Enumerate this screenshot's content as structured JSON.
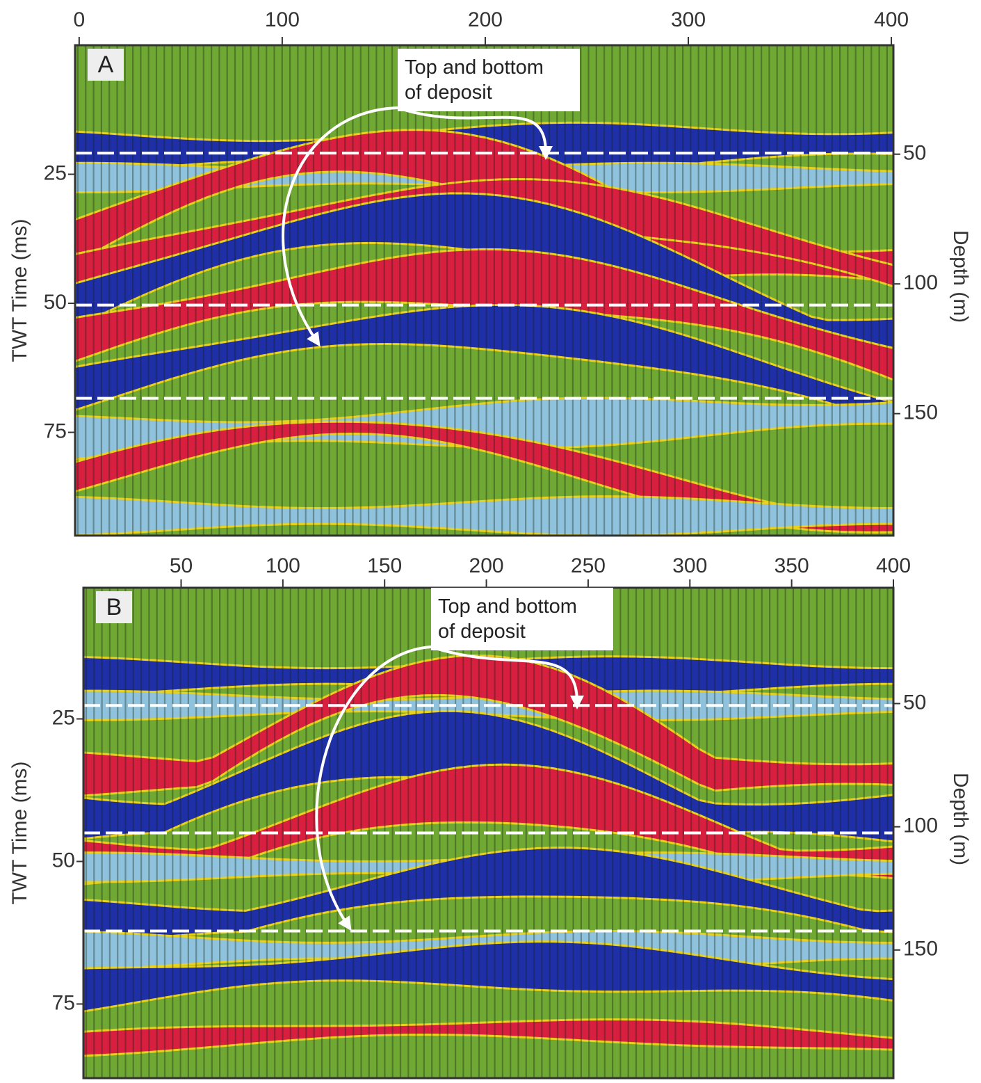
{
  "chart_data": [
    {
      "type": "seismic",
      "panel_label": "A",
      "annotation": [
        "Top and bottom",
        "of deposit"
      ],
      "ylabel": "TWT Time (ms)",
      "y2label": "Depth (m)",
      "xlim": [
        -2,
        401
      ],
      "xticks": [
        0,
        100,
        200,
        300,
        400
      ],
      "ylim": [
        0,
        95
      ],
      "yticks": [
        25,
        50,
        75
      ],
      "y2lim": [
        8,
        197
      ],
      "y2ticks": [
        50,
        100,
        150
      ]
    },
    {
      "type": "seismic",
      "panel_label": "B",
      "annotation": [
        "Top and bottom",
        "of deposit"
      ],
      "ylabel": "TWT Time (ms)",
      "y2label": "Depth (m)",
      "xlim": [
        2,
        400
      ],
      "xticks": [
        50,
        100,
        150,
        200,
        250,
        300,
        350,
        400
      ],
      "ylim": [
        2,
        88
      ],
      "yticks": [
        25,
        50,
        75
      ],
      "y2lim": [
        3,
        202
      ],
      "y2ticks": [
        50,
        100,
        150
      ]
    }
  ]
}
